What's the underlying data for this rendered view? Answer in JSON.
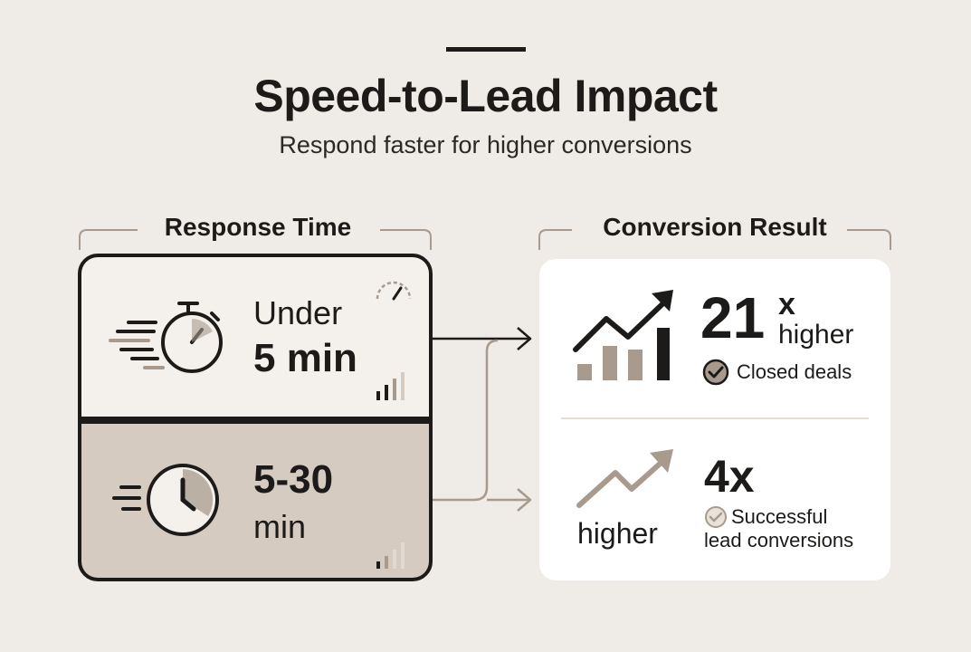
{
  "header": {
    "title": "Speed-to-Lead Impact",
    "subtitle": "Respond faster for higher conversions"
  },
  "response_time": {
    "heading": "Response Time",
    "fast": {
      "line1": "Under",
      "line2": "5 min"
    },
    "slow": {
      "line1": "5-30",
      "line2": "min"
    }
  },
  "conversion_result": {
    "heading": "Conversion Result",
    "top": {
      "number": "21",
      "suffix": "x",
      "label": "higher",
      "check_label": "Closed deals"
    },
    "bottom": {
      "number": "4x",
      "label": "higher",
      "check_label_1": "Successful",
      "check_label_2": "lead conversions"
    }
  },
  "colors": {
    "background": "#efebe6",
    "ink": "#1c1b19",
    "taupe": "#a89a8c",
    "slow_panel": "#d5cbc0"
  },
  "icons": [
    "stopwatch-icon",
    "speedometer-icon",
    "signal-bars-icon",
    "clock-icon",
    "growth-bar-chart-icon",
    "trend-arrow-icon",
    "check-circle-icon"
  ]
}
